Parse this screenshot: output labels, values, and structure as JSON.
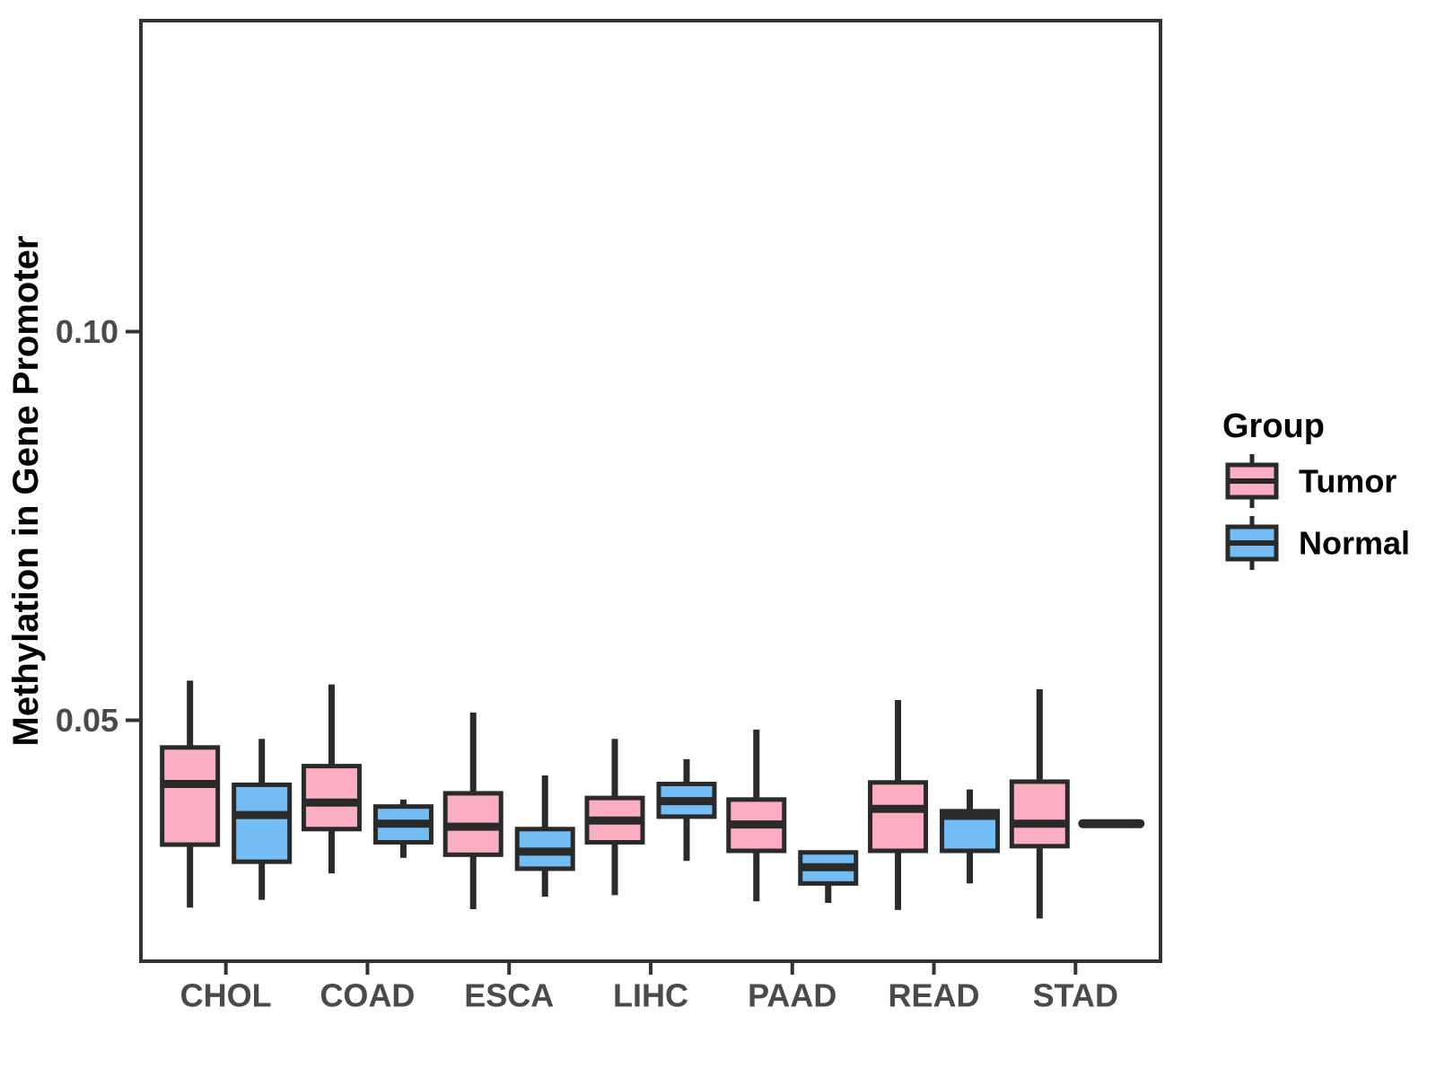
{
  "chart_data": {
    "type": "boxplot",
    "title": "",
    "xlabel": "",
    "ylabel": "Methylation in Gene Promoter",
    "categories": [
      "CHOL",
      "COAD",
      "ESCA",
      "LIHC",
      "PAAD",
      "READ",
      "STAD"
    ],
    "y_ticks": [
      {
        "label": "0.05",
        "value": 0.05
      },
      {
        "label": "0.10",
        "value": 0.1
      }
    ],
    "ylim": [
      0.019,
      0.14
    ],
    "grid": "off",
    "legend": {
      "title": "Group",
      "position": "right",
      "items": [
        {
          "label": "Tumor",
          "color": "#FBAEC1"
        },
        {
          "label": "Normal",
          "color": "#74BDF4"
        }
      ]
    },
    "series": [
      {
        "name": "Tumor",
        "color": "#FBAEC1",
        "boxes": [
          {
            "category": "CHOL",
            "min": 0.0259,
            "q1": 0.034,
            "median": 0.0418,
            "q3": 0.0465,
            "max": 0.0551
          },
          {
            "category": "COAD",
            "min": 0.0303,
            "q1": 0.036,
            "median": 0.0394,
            "q3": 0.0441,
            "max": 0.0546
          },
          {
            "category": "ESCA",
            "min": 0.0257,
            "q1": 0.0327,
            "median": 0.0363,
            "q3": 0.0406,
            "max": 0.051
          },
          {
            "category": "LIHC",
            "min": 0.0275,
            "q1": 0.0343,
            "median": 0.0371,
            "q3": 0.04,
            "max": 0.0476
          },
          {
            "category": "PAAD",
            "min": 0.0267,
            "q1": 0.0332,
            "median": 0.0366,
            "q3": 0.0398,
            "max": 0.0488
          },
          {
            "category": "READ",
            "min": 0.0256,
            "q1": 0.0332,
            "median": 0.0386,
            "q3": 0.042,
            "max": 0.0526
          },
          {
            "category": "STAD",
            "min": 0.0245,
            "q1": 0.0338,
            "median": 0.0367,
            "q3": 0.0421,
            "max": 0.054
          }
        ]
      },
      {
        "name": "Normal",
        "color": "#74BDF4",
        "boxes": [
          {
            "category": "CHOL",
            "min": 0.0269,
            "q1": 0.0318,
            "median": 0.0378,
            "q3": 0.0417,
            "max": 0.0476
          },
          {
            "category": "COAD",
            "min": 0.0323,
            "q1": 0.0343,
            "median": 0.0367,
            "q3": 0.0389,
            "max": 0.0398
          },
          {
            "category": "ESCA",
            "min": 0.0273,
            "q1": 0.0309,
            "median": 0.0331,
            "q3": 0.036,
            "max": 0.0429
          },
          {
            "category": "LIHC",
            "min": 0.0319,
            "q1": 0.0376,
            "median": 0.0396,
            "q3": 0.0418,
            "max": 0.045
          },
          {
            "category": "PAAD",
            "min": 0.0265,
            "q1": 0.029,
            "median": 0.0311,
            "q3": 0.033,
            "max": 0.033
          },
          {
            "category": "READ",
            "min": 0.029,
            "q1": 0.0332,
            "median": 0.0377,
            "q3": 0.0383,
            "max": 0.0411
          },
          {
            "category": "STAD",
            "min": 0.0367,
            "q1": 0.0367,
            "median": 0.0367,
            "q3": 0.0367,
            "max": 0.0367
          }
        ]
      }
    ],
    "colors": {
      "box_line": "#2a2a2a",
      "panel_border": "#333333",
      "axis_text": "#4a4a4a",
      "title_text": "#000000",
      "background": "#ffffff"
    }
  }
}
